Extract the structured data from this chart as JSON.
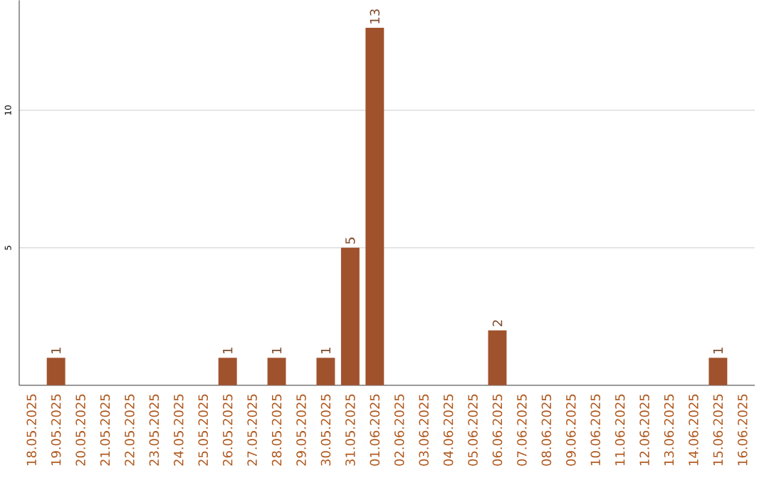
{
  "chart_data": {
    "type": "bar",
    "categories": [
      "18.05.2025",
      "19.05.2025",
      "20.05.2025",
      "21.05.2025",
      "22.05.2025",
      "23.05.2025",
      "24.05.2025",
      "25.05.2025",
      "26.05.2025",
      "27.05.2025",
      "28.05.2025",
      "29.05.2025",
      "30.05.2025",
      "31.05.2025",
      "01.06.2025",
      "02.06.2025",
      "03.06.2025",
      "04.06.2025",
      "05.06.2025",
      "06.06.2025",
      "07.06.2025",
      "08.06.2025",
      "09.06.2025",
      "10.06.2025",
      "11.06.2025",
      "12.06.2025",
      "13.06.2025",
      "14.06.2025",
      "15.06.2025",
      "16.06.2025"
    ],
    "values": [
      0,
      1,
      0,
      0,
      0,
      0,
      0,
      0,
      1,
      0,
      1,
      0,
      1,
      5,
      13,
      0,
      0,
      0,
      0,
      2,
      0,
      0,
      0,
      0,
      0,
      0,
      0,
      0,
      1,
      0
    ],
    "value_labels": [
      null,
      "1",
      null,
      null,
      null,
      null,
      null,
      null,
      "1",
      null,
      "1",
      null,
      "1",
      "5",
      "13",
      null,
      null,
      null,
      null,
      "2",
      null,
      null,
      null,
      null,
      null,
      null,
      null,
      null,
      "1",
      null
    ],
    "color": "#a0522d",
    "ylim": [
      0,
      14
    ],
    "yticks": [
      5,
      10
    ],
    "grid": "y"
  }
}
